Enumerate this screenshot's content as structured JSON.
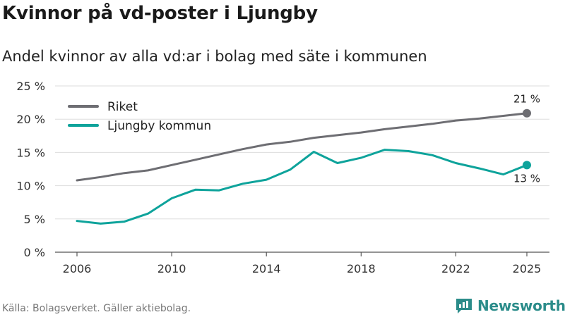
{
  "header": {
    "title": "Kvinnor på vd-poster i Ljungby",
    "subtitle": "Andel kvinnor av alla vd:ar i bolag med säte i kommunen"
  },
  "footer": {
    "source": "Källa: Bolagsverket. Gäller aktiebolag.",
    "brand": "Newsworthy"
  },
  "colors": {
    "riket": "#6e6e73",
    "ljungby": "#0ea39b",
    "grid": "#dddddd",
    "brand": "#2b8c8a"
  },
  "chart_data": {
    "type": "line",
    "title": "Kvinnor på vd-poster i Ljungby",
    "subtitle": "Andel kvinnor av alla vd:ar i bolag med säte i kommunen",
    "xlabel": "",
    "ylabel": "",
    "xlim": [
      2006,
      2025
    ],
    "ylim": [
      0,
      25
    ],
    "x_ticks": [
      2006,
      2010,
      2014,
      2018,
      2022,
      2025
    ],
    "y_ticks": [
      0,
      5,
      10,
      15,
      20,
      25
    ],
    "y_tick_labels": [
      "0 %",
      "5 %",
      "10 %",
      "15 %",
      "20 %",
      "25 %"
    ],
    "grid": true,
    "legend_position": "top-left",
    "x": [
      2006,
      2007,
      2008,
      2009,
      2010,
      2011,
      2012,
      2013,
      2014,
      2015,
      2016,
      2017,
      2018,
      2019,
      2020,
      2021,
      2022,
      2023,
      2024,
      2025
    ],
    "series": [
      {
        "name": "Riket",
        "color": "#6e6e73",
        "values": [
          10.8,
          11.3,
          11.9,
          12.3,
          13.1,
          13.9,
          14.7,
          15.5,
          16.2,
          16.6,
          17.2,
          17.6,
          18.0,
          18.5,
          18.9,
          19.3,
          19.8,
          20.1,
          20.5,
          20.9
        ],
        "end_label": "21 %"
      },
      {
        "name": "Ljungby kommun",
        "color": "#0ea39b",
        "values": [
          4.7,
          4.3,
          4.6,
          5.8,
          8.1,
          9.4,
          9.3,
          10.3,
          10.9,
          12.4,
          15.1,
          13.4,
          14.2,
          15.4,
          15.2,
          14.6,
          13.4,
          12.6,
          11.7,
          13.1
        ],
        "end_label": "13 %"
      }
    ]
  }
}
